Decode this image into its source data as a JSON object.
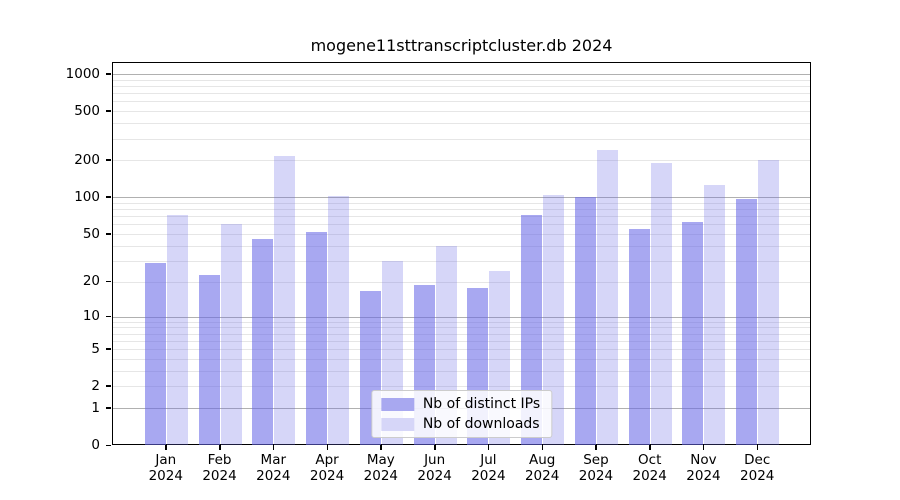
{
  "chart_data": {
    "type": "bar",
    "title": "mogene11sttranscriptcluster.db 2024",
    "categories": [
      "Jan",
      "Feb",
      "Mar",
      "Apr",
      "May",
      "Jun",
      "Jul",
      "Aug",
      "Sep",
      "Oct",
      "Nov",
      "Dec"
    ],
    "year_label": "2024",
    "series": [
      {
        "name": "Nb of distinct IPs",
        "color": "rgba(102,102,230,0.57)",
        "solid_color": "#a8a8f0",
        "values": [
          29,
          23,
          46,
          53,
          17,
          19,
          18,
          72,
          101,
          56,
          63,
          98
        ]
      },
      {
        "name": "Nb of downloads",
        "color": "rgba(102,102,230,0.27)",
        "solid_color": "#d6d6f8",
        "values": [
          72,
          61,
          218,
          104,
          30,
          40,
          25,
          105,
          243,
          192,
          127,
          203
        ]
      }
    ],
    "ylabel": "",
    "xlabel": "",
    "yticks": [
      {
        "value": 1000,
        "label": "1000"
      },
      {
        "value": 500,
        "label": "500"
      },
      {
        "value": 200,
        "label": "200"
      },
      {
        "value": 100,
        "label": "100"
      },
      {
        "value": 50,
        "label": "50"
      },
      {
        "value": 20,
        "label": "20"
      },
      {
        "value": 10,
        "label": "10"
      },
      {
        "value": 5,
        "label": "5"
      },
      {
        "value": 2,
        "label": "2"
      },
      {
        "value": 1,
        "label": "1"
      },
      {
        "value": 0,
        "label": "0"
      }
    ],
    "scale": "log10(1+value)",
    "ylim": [
      0,
      1239
    ],
    "grid": "horizontal log minor+major, major at powers of 10",
    "legend_position": "lower center inside plot",
    "colors": {
      "bar_distinct_ips": "#a8a8f0",
      "bar_downloads": "#d6d6f8",
      "grid_minor": "#e6e6e6",
      "grid_major": "#b0b0b0",
      "spine": "#000000"
    }
  }
}
